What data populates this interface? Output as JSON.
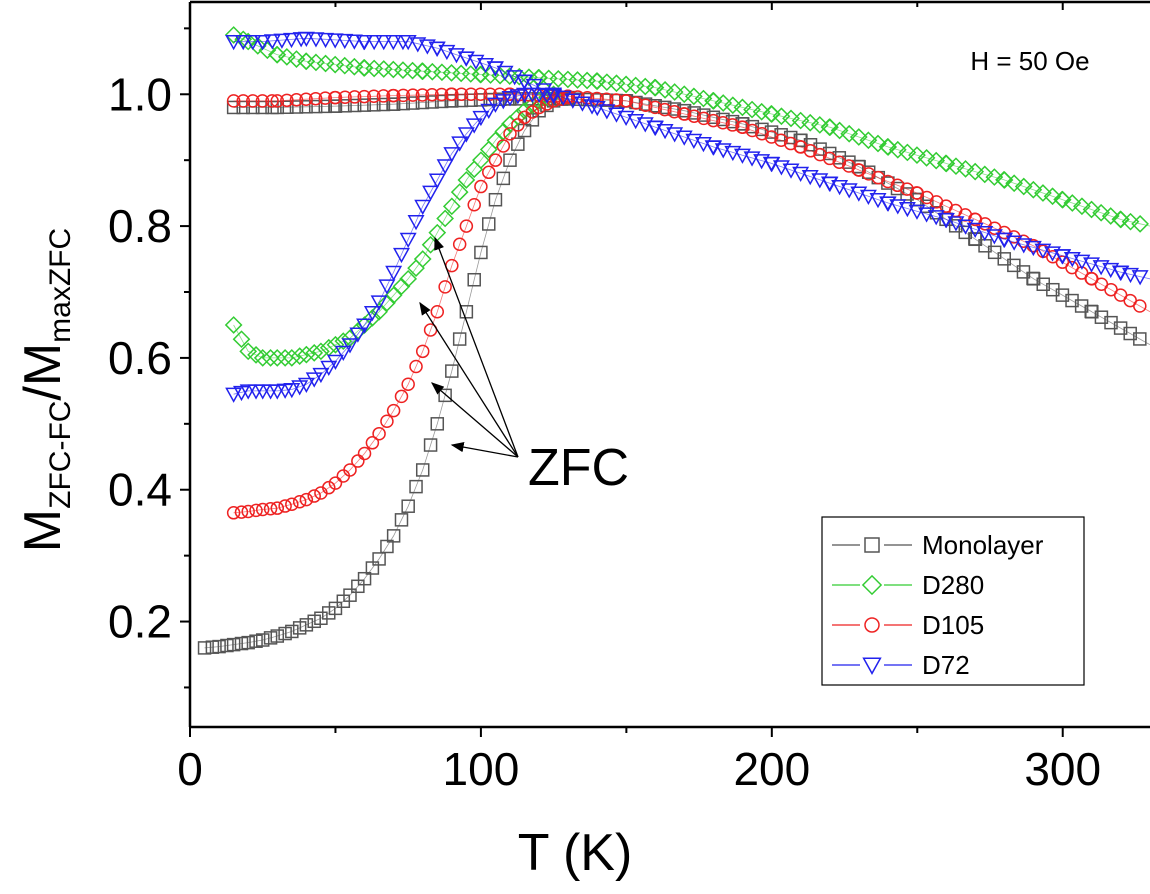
{
  "chart_data": {
    "type": "scatter",
    "xlabel": "T (K)",
    "ylabel": {
      "main": "M",
      "sub1": "ZFC-FC",
      "sep": "/M",
      "sub2": "maxZFC"
    },
    "xlim": [
      0,
      330
    ],
    "ylim": [
      0.04,
      1.14
    ],
    "xticks": [
      0,
      100,
      200,
      300
    ],
    "yticks": [
      0.2,
      0.4,
      0.6,
      0.8,
      1.0
    ],
    "xtick_labels": [
      "0",
      "100",
      "200",
      "300"
    ],
    "ytick_labels": [
      "0.2",
      "0.4",
      "0.6",
      "0.8",
      "1.0"
    ],
    "annotation": "H = 50 Oe",
    "zfc_label": "ZFC",
    "legend_position": "bottom-right",
    "series": [
      {
        "name": "Monolayer",
        "color": "#555555",
        "marker": "square",
        "zfc": [
          [
            5,
            0.16
          ],
          [
            10,
            0.162
          ],
          [
            15,
            0.165
          ],
          [
            20,
            0.168
          ],
          [
            25,
            0.172
          ],
          [
            30,
            0.178
          ],
          [
            35,
            0.185
          ],
          [
            40,
            0.195
          ],
          [
            45,
            0.205
          ],
          [
            50,
            0.22
          ],
          [
            55,
            0.24
          ],
          [
            60,
            0.265
          ],
          [
            65,
            0.295
          ],
          [
            70,
            0.33
          ],
          [
            75,
            0.375
          ],
          [
            80,
            0.43
          ],
          [
            85,
            0.5
          ],
          [
            90,
            0.58
          ],
          [
            95,
            0.67
          ],
          [
            100,
            0.76
          ],
          [
            105,
            0.84
          ],
          [
            110,
            0.9
          ],
          [
            115,
            0.945
          ],
          [
            120,
            0.975
          ],
          [
            125,
            0.99
          ],
          [
            130,
            0.995
          ]
        ],
        "fc": [
          [
            15,
            0.98
          ],
          [
            30,
            0.98
          ],
          [
            50,
            0.982
          ],
          [
            70,
            0.985
          ],
          [
            90,
            0.99
          ],
          [
            110,
            0.993
          ],
          [
            130,
            0.993
          ],
          [
            150,
            0.99
          ],
          [
            170,
            0.975
          ],
          [
            190,
            0.955
          ],
          [
            210,
            0.93
          ],
          [
            230,
            0.89
          ],
          [
            250,
            0.84
          ],
          [
            270,
            0.78
          ],
          [
            290,
            0.72
          ],
          [
            310,
            0.67
          ],
          [
            330,
            0.62
          ]
        ]
      },
      {
        "name": "D280",
        "color": "#33cc33",
        "marker": "diamond",
        "zfc": [
          [
            15,
            0.65
          ],
          [
            20,
            0.61
          ],
          [
            25,
            0.6
          ],
          [
            30,
            0.6
          ],
          [
            35,
            0.6
          ],
          [
            40,
            0.605
          ],
          [
            45,
            0.61
          ],
          [
            50,
            0.62
          ],
          [
            55,
            0.63
          ],
          [
            60,
            0.65
          ],
          [
            65,
            0.67
          ],
          [
            70,
            0.695
          ],
          [
            75,
            0.72
          ],
          [
            80,
            0.75
          ],
          [
            85,
            0.79
          ],
          [
            90,
            0.83
          ],
          [
            95,
            0.87
          ],
          [
            100,
            0.9
          ],
          [
            105,
            0.93
          ],
          [
            110,
            0.955
          ],
          [
            115,
            0.975
          ],
          [
            120,
            0.99
          ],
          [
            125,
            1.0
          ]
        ],
        "fc": [
          [
            15,
            1.09
          ],
          [
            20,
            1.08
          ],
          [
            30,
            1.06
          ],
          [
            40,
            1.05
          ],
          [
            60,
            1.04
          ],
          [
            80,
            1.035
          ],
          [
            100,
            1.03
          ],
          [
            120,
            1.025
          ],
          [
            140,
            1.02
          ],
          [
            160,
            1.01
          ],
          [
            180,
            0.99
          ],
          [
            200,
            0.97
          ],
          [
            220,
            0.95
          ],
          [
            240,
            0.92
          ],
          [
            260,
            0.895
          ],
          [
            280,
            0.87
          ],
          [
            300,
            0.84
          ],
          [
            320,
            0.81
          ],
          [
            330,
            0.8
          ]
        ]
      },
      {
        "name": "D105",
        "color": "#ee2222",
        "marker": "circle",
        "zfc": [
          [
            15,
            0.365
          ],
          [
            20,
            0.367
          ],
          [
            25,
            0.37
          ],
          [
            30,
            0.372
          ],
          [
            35,
            0.378
          ],
          [
            40,
            0.385
          ],
          [
            45,
            0.395
          ],
          [
            50,
            0.41
          ],
          [
            55,
            0.43
          ],
          [
            60,
            0.455
          ],
          [
            65,
            0.485
          ],
          [
            70,
            0.52
          ],
          [
            75,
            0.56
          ],
          [
            80,
            0.61
          ],
          [
            85,
            0.67
          ],
          [
            90,
            0.74
          ],
          [
            95,
            0.8
          ],
          [
            100,
            0.86
          ],
          [
            105,
            0.9
          ],
          [
            110,
            0.94
          ],
          [
            115,
            0.965
          ],
          [
            120,
            0.98
          ],
          [
            125,
            0.99
          ],
          [
            130,
            0.995
          ]
        ],
        "fc": [
          [
            15,
            0.99
          ],
          [
            30,
            0.99
          ],
          [
            50,
            0.995
          ],
          [
            70,
            0.998
          ],
          [
            90,
            1.0
          ],
          [
            110,
            1.0
          ],
          [
            130,
            0.997
          ],
          [
            150,
            0.99
          ],
          [
            170,
            0.97
          ],
          [
            190,
            0.95
          ],
          [
            210,
            0.92
          ],
          [
            230,
            0.885
          ],
          [
            250,
            0.85
          ],
          [
            270,
            0.81
          ],
          [
            290,
            0.77
          ],
          [
            310,
            0.72
          ],
          [
            330,
            0.67
          ]
        ]
      },
      {
        "name": "D72",
        "color": "#2222ee",
        "marker": "triangle-down",
        "zfc": [
          [
            15,
            0.545
          ],
          [
            20,
            0.55
          ],
          [
            25,
            0.55
          ],
          [
            30,
            0.55
          ],
          [
            35,
            0.552
          ],
          [
            40,
            0.56
          ],
          [
            45,
            0.575
          ],
          [
            50,
            0.595
          ],
          [
            55,
            0.62
          ],
          [
            60,
            0.65
          ],
          [
            65,
            0.685
          ],
          [
            70,
            0.73
          ],
          [
            75,
            0.78
          ],
          [
            80,
            0.83
          ],
          [
            85,
            0.87
          ],
          [
            90,
            0.91
          ],
          [
            95,
            0.94
          ],
          [
            100,
            0.965
          ],
          [
            105,
            0.985
          ],
          [
            110,
            0.995
          ],
          [
            115,
            1.0
          ],
          [
            120,
            1.0
          ],
          [
            125,
            0.998
          ]
        ],
        "fc": [
          [
            15,
            1.08
          ],
          [
            25,
            1.08
          ],
          [
            40,
            1.085
          ],
          [
            60,
            1.08
          ],
          [
            75,
            1.08
          ],
          [
            85,
            1.07
          ],
          [
            95,
            1.055
          ],
          [
            105,
            1.04
          ],
          [
            115,
            1.02
          ],
          [
            125,
            1.0
          ],
          [
            140,
            0.98
          ],
          [
            160,
            0.95
          ],
          [
            180,
            0.92
          ],
          [
            200,
            0.895
          ],
          [
            220,
            0.865
          ],
          [
            240,
            0.835
          ],
          [
            260,
            0.81
          ],
          [
            280,
            0.78
          ],
          [
            300,
            0.755
          ],
          [
            320,
            0.73
          ],
          [
            330,
            0.72
          ]
        ]
      }
    ]
  }
}
